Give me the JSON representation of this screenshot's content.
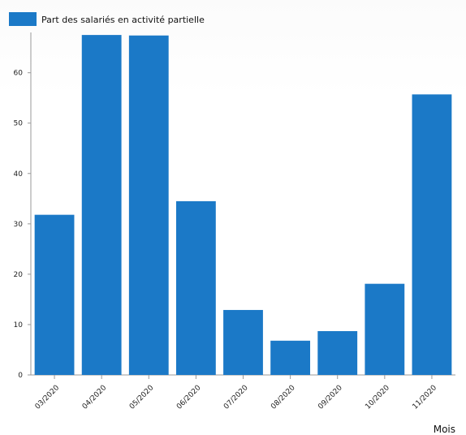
{
  "chart_data": {
    "type": "bar",
    "categories": [
      "03/2020",
      "04/2020",
      "05/2020",
      "06/2020",
      "07/2020",
      "08/2020",
      "09/2020",
      "10/2020",
      "11/2020"
    ],
    "series": [
      {
        "name": "Part des salariés en activité partielle",
        "values": [
          31.8,
          67.5,
          67.4,
          34.5,
          12.9,
          6.8,
          8.7,
          18.1,
          55.7
        ],
        "color": "#1b79c7"
      }
    ],
    "xlabel": "Mois",
    "ylabel": "",
    "ylim": [
      0,
      68
    ],
    "yticks": [
      0,
      10,
      20,
      30,
      40,
      50,
      60
    ],
    "grid": false,
    "legend_position": "top-left"
  }
}
